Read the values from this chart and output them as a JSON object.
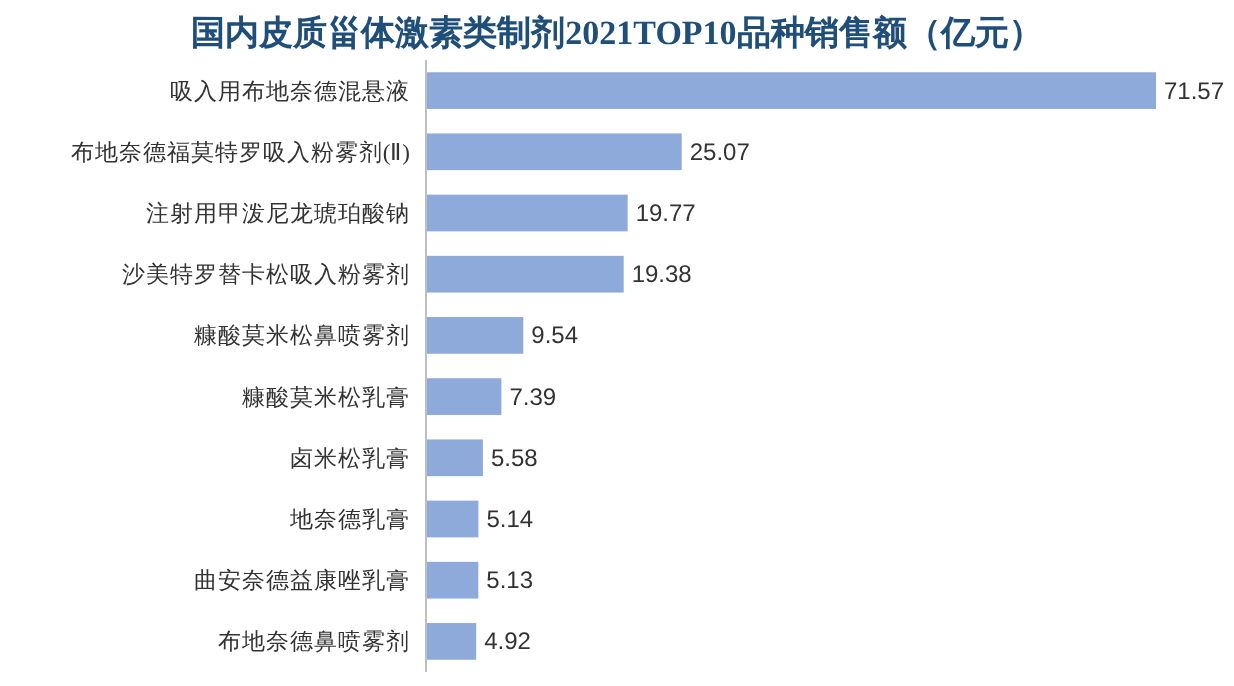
{
  "chart_data": {
    "type": "bar",
    "orientation": "horizontal",
    "title": "国内皮质甾体激素类制剂2021TOP10品种销售额（亿元）",
    "categories": [
      "吸入用布地奈德混悬液",
      "布地奈德福莫特罗吸入粉雾剂(Ⅱ)",
      "注射用甲泼尼龙琥珀酸钠",
      "沙美特罗替卡松吸入粉雾剂",
      "糠酸莫米松鼻喷雾剂",
      "糠酸莫米松乳膏",
      "卤米松乳膏",
      "地奈德乳膏",
      "曲安奈德益康唑乳膏",
      "布地奈德鼻喷雾剂"
    ],
    "values": [
      71.57,
      25.07,
      19.77,
      19.38,
      9.54,
      7.39,
      5.58,
      5.14,
      5.13,
      4.92
    ],
    "color": "#8eaadb",
    "data_labels": true
  }
}
